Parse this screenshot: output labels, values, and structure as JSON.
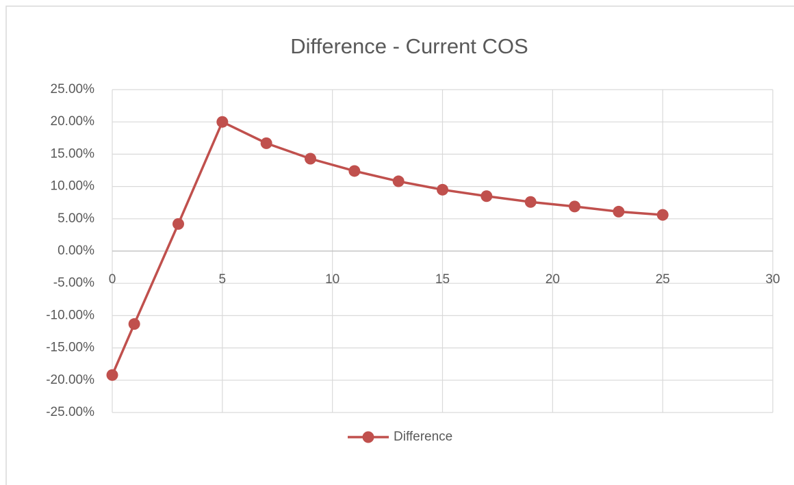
{
  "chart_data": {
    "type": "scatter",
    "title": "Difference - Current COS",
    "x": [
      0,
      1,
      3,
      5,
      7,
      9,
      11,
      13,
      15,
      17,
      19,
      21,
      23,
      25
    ],
    "series": [
      {
        "name": "Difference",
        "color": "#c0504d",
        "values": [
          -19.2,
          -11.3,
          4.2,
          20.0,
          16.7,
          14.3,
          12.4,
          10.8,
          9.5,
          8.5,
          7.6,
          6.9,
          6.1,
          5.6
        ]
      }
    ],
    "xlim": [
      0,
      30
    ],
    "xticks": [
      0,
      5,
      10,
      15,
      20,
      25,
      30
    ],
    "ylim": [
      -25,
      25
    ],
    "yticks": [
      {
        "value": 25,
        "label": "25.00%"
      },
      {
        "value": 20,
        "label": "20.00%"
      },
      {
        "value": 15,
        "label": "15.00%"
      },
      {
        "value": 10,
        "label": "10.00%"
      },
      {
        "value": 5,
        "label": "5.00%"
      },
      {
        "value": 0,
        "label": "0.00%"
      },
      {
        "value": -5,
        "label": "-5.00%"
      },
      {
        "value": -10,
        "label": "-10.00%"
      },
      {
        "value": -15,
        "label": "-15.00%"
      },
      {
        "value": -20,
        "label": "-20.00%"
      },
      {
        "value": -25,
        "label": "-25.00%"
      }
    ],
    "grid": true,
    "legend": "bottom"
  }
}
